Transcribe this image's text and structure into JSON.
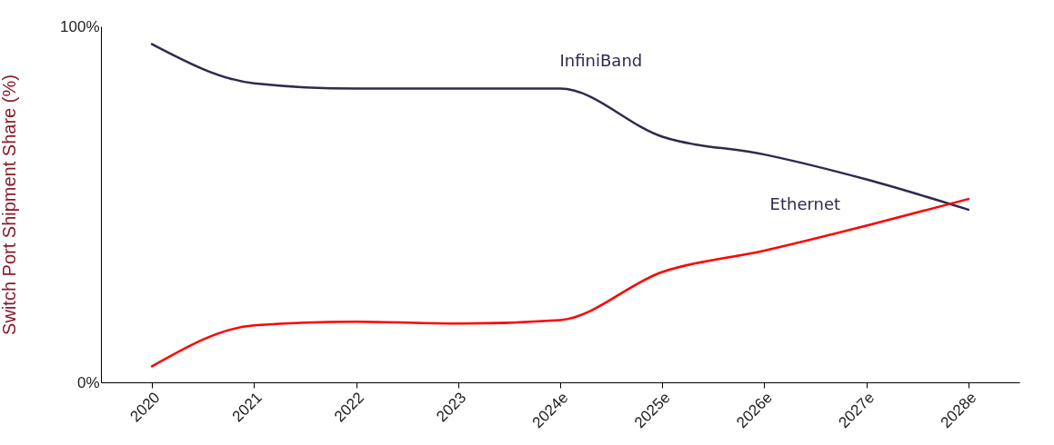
{
  "chart_data": {
    "type": "line",
    "ylabel": "Switch Port Shipment Share (%)",
    "categories": [
      "2020",
      "2021",
      "2022",
      "2023",
      "2024e",
      "2025e",
      "2026e",
      "2027e",
      "2028e"
    ],
    "series": [
      {
        "name": "InfiniBand",
        "color": "#2e2a4f",
        "values": [
          95,
          84,
          82.5,
          82.5,
          82.5,
          69,
          64,
          57,
          48.5
        ]
      },
      {
        "name": "Ethernet",
        "color": "#ff0000",
        "values": [
          4.5,
          16,
          17,
          16.5,
          17.5,
          31,
          37,
          44,
          51.5
        ]
      }
    ],
    "ylim": [
      0,
      100
    ],
    "yticks": [
      {
        "value": 0,
        "label": "0%"
      },
      {
        "value": 100,
        "label": "100%"
      }
    ],
    "line_style": "solid"
  }
}
